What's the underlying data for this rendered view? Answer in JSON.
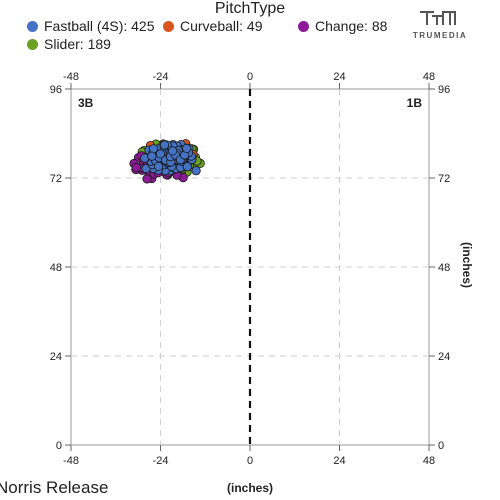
{
  "chart_data": {
    "type": "scatter",
    "title": "PitchType",
    "xlabel": "(inches)",
    "ylabel": "(inches)",
    "xlim": [
      -48,
      48
    ],
    "ylim": [
      0,
      96
    ],
    "x_ticks": [
      "-48",
      "-24",
      "0",
      "24",
      "48"
    ],
    "y_ticks": [
      "0",
      "24",
      "48",
      "72",
      "96"
    ],
    "grid": true,
    "corner_labels": {
      "left": "3B",
      "right": "1B"
    },
    "legend_position": "top",
    "series": [
      {
        "name": "Fastball (4S): 425",
        "color": "#4472c4",
        "center": [
          -21.5,
          77.5
        ],
        "spread": [
          3.2,
          1.6
        ],
        "count": 425
      },
      {
        "name": "Curveball: 49",
        "color": "#d9541e",
        "center": [
          -21.0,
          79.0
        ],
        "spread": [
          2.6,
          1.5
        ],
        "count": 49
      },
      {
        "name": "Change: 88",
        "color": "#8b1a96",
        "center": [
          -24.5,
          75.5
        ],
        "spread": [
          3.0,
          1.7
        ],
        "count": 88
      },
      {
        "name": "Slider: 189",
        "color": "#6aa121",
        "center": [
          -21.0,
          77.0
        ],
        "spread": [
          3.6,
          1.9
        ],
        "count": 189
      }
    ]
  },
  "branding": {
    "name": "TRUMEDIA"
  },
  "footer": {
    "left_text": "Norris Release"
  }
}
